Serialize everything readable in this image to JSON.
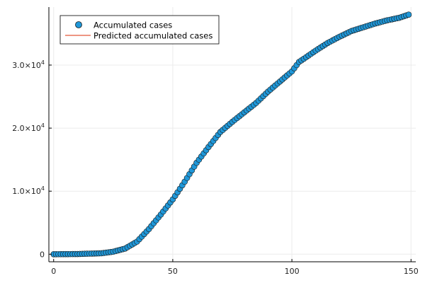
{
  "chart_data": {
    "type": "scatter",
    "title": "",
    "xlabel": "",
    "ylabel": "",
    "xlim": [
      -2,
      152
    ],
    "ylim": [
      -1200,
      39200
    ],
    "x_ticks": [
      0,
      50,
      100,
      150
    ],
    "y_ticks": [
      {
        "value": 0,
        "mantissa": "0",
        "exponent": ""
      },
      {
        "value": 10000,
        "mantissa": "1.0×10",
        "exponent": "4"
      },
      {
        "value": 20000,
        "mantissa": "2.0×10",
        "exponent": "4"
      },
      {
        "value": 30000,
        "mantissa": "3.0×10",
        "exponent": "4"
      }
    ],
    "grid": true,
    "legend": {
      "position": "top-left",
      "entries": [
        {
          "name": "Accumulated cases",
          "marker": "circle",
          "color": "#1f97d8"
        },
        {
          "name": "Predicted accumulated cases",
          "marker": "line",
          "color": "#e8735a"
        }
      ]
    },
    "anchors_x": [
      0,
      10,
      20,
      25,
      30,
      35,
      40,
      45,
      50,
      55,
      60,
      65,
      70,
      75,
      80,
      85,
      90,
      95,
      100,
      103,
      105,
      110,
      115,
      120,
      125,
      130,
      135,
      140,
      145,
      149
    ],
    "anchors_y": [
      0,
      30,
      150,
      400,
      900,
      2000,
      4000,
      6300,
      8700,
      11500,
      14500,
      17000,
      19400,
      21000,
      22500,
      24000,
      25800,
      27400,
      29000,
      30500,
      31000,
      32300,
      33500,
      34500,
      35400,
      36000,
      36600,
      37100,
      37500,
      38000
    ],
    "series": [
      {
        "name": "Accumulated cases",
        "kind": "scatter",
        "x_start": 0,
        "x_end": 149,
        "x_step": 1
      },
      {
        "name": "Predicted accumulated cases",
        "kind": "line",
        "x_start": 0,
        "x_end": 149,
        "x_step": 1
      }
    ],
    "colors": {
      "scatter_fill": "#1f97d8",
      "scatter_stroke": "#1a1a1a",
      "line": "#e8735a",
      "axis": "#000000",
      "grid": "#ebebeb"
    }
  }
}
